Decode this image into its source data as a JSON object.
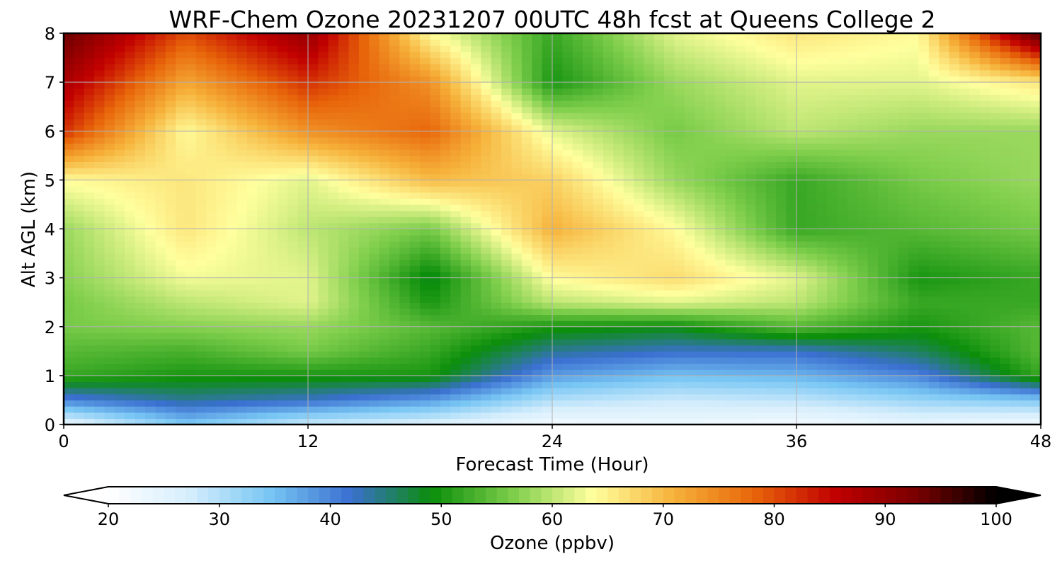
{
  "chart_data": {
    "type": "heatmap",
    "title": "WRF-Chem Ozone  20231207 00UTC 48h fcst at Queens College 2",
    "xlabel": "Forecast Time (Hour)",
    "ylabel": "Alt AGL (km)",
    "xlim": [
      0,
      48
    ],
    "ylim": [
      0,
      8
    ],
    "xticks": [
      0,
      12,
      24,
      36,
      48
    ],
    "yticks": [
      0,
      1,
      2,
      3,
      4,
      5,
      6,
      7,
      8
    ],
    "grid": true,
    "colorbar": {
      "label": "Ozone  (ppbv)",
      "min": 20,
      "max": 100,
      "ticks": [
        20,
        30,
        40,
        50,
        60,
        70,
        80,
        90,
        100
      ],
      "extend": "both",
      "colors": [
        "#ffffff",
        "#d6eefc",
        "#78c6f4",
        "#3a6fd0",
        "#0b8e0b",
        "#7ccd4a",
        "#ffff9e",
        "#f6b23a",
        "#e8650a",
        "#c10000",
        "#7a0000",
        "#000000"
      ]
    },
    "x": [
      0,
      6,
      12,
      18,
      24,
      30,
      36,
      42,
      48
    ],
    "y": [
      0,
      0.5,
      1,
      1.5,
      2,
      2.5,
      3,
      4,
      5,
      6,
      7,
      8
    ],
    "values": [
      [
        24,
        34,
        28,
        26,
        22,
        23,
        22,
        24,
        22
      ],
      [
        40,
        44,
        42,
        38,
        30,
        28,
        29,
        32,
        34
      ],
      [
        52,
        50,
        50,
        50,
        38,
        35,
        36,
        40,
        52
      ],
      [
        54,
        53,
        56,
        52,
        44,
        42,
        42,
        46,
        54
      ],
      [
        56,
        57,
        58,
        54,
        50,
        49,
        54,
        50,
        54
      ],
      [
        56,
        60,
        62,
        50,
        60,
        62,
        60,
        52,
        52
      ],
      [
        57,
        63,
        62,
        48,
        64,
        67,
        62,
        50,
        52
      ],
      [
        58,
        66,
        60,
        56,
        71,
        64,
        52,
        54,
        56
      ],
      [
        64,
        66,
        62,
        70,
        68,
        58,
        52,
        56,
        58
      ],
      [
        82,
        64,
        74,
        78,
        62,
        56,
        60,
        58,
        58
      ],
      [
        88,
        72,
        82,
        74,
        50,
        58,
        62,
        62,
        66
      ],
      [
        94,
        80,
        90,
        64,
        52,
        62,
        66,
        64,
        96
      ]
    ]
  }
}
